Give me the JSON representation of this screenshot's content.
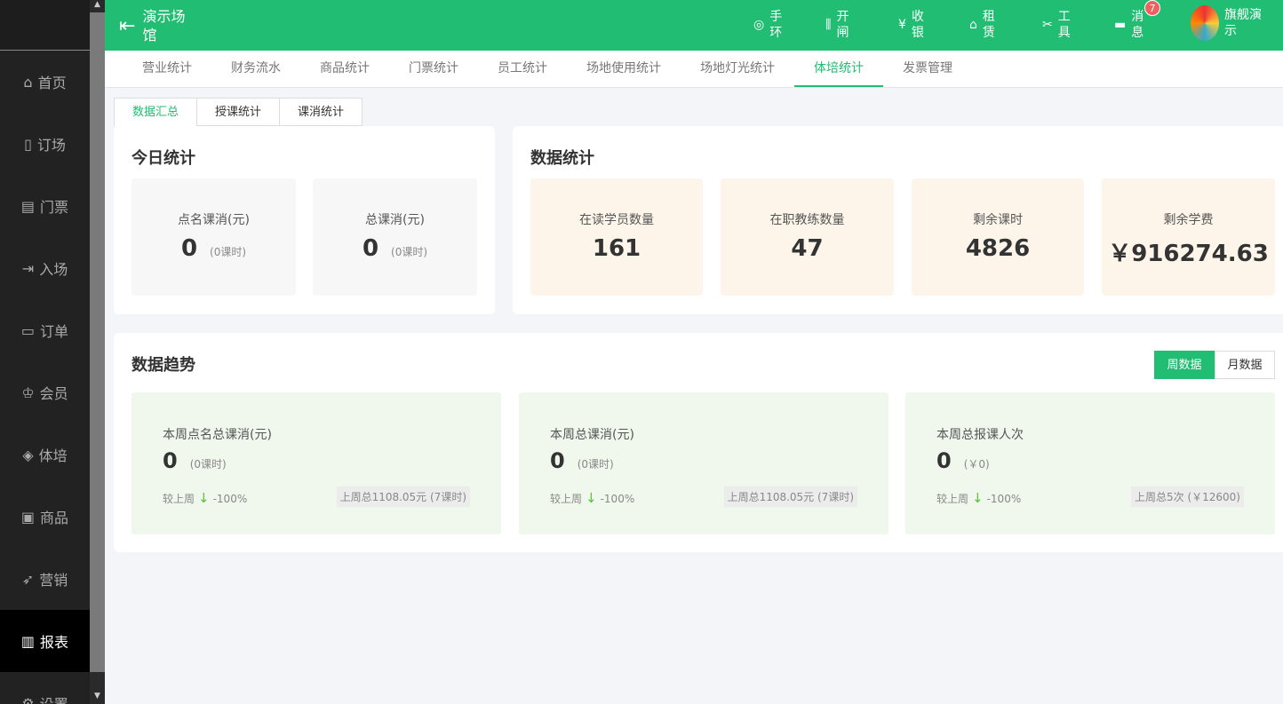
{
  "sidebar": {
    "items": [
      {
        "label": "首页",
        "icon": "home-icon"
      },
      {
        "label": "订场",
        "icon": "book-icon"
      },
      {
        "label": "门票",
        "icon": "ticket-icon"
      },
      {
        "label": "入场",
        "icon": "enter-icon"
      },
      {
        "label": "订单",
        "icon": "order-icon"
      },
      {
        "label": "会员",
        "icon": "member-icon"
      },
      {
        "label": "体培",
        "icon": "training-icon"
      },
      {
        "label": "商品",
        "icon": "goods-icon"
      },
      {
        "label": "营销",
        "icon": "marketing-icon"
      },
      {
        "label": "报表",
        "icon": "report-icon",
        "active": true
      },
      {
        "label": "设置",
        "icon": "settings-icon"
      }
    ]
  },
  "header": {
    "venue": "演示场馆",
    "items": [
      {
        "label": "手环",
        "icon": "wristband-icon"
      },
      {
        "label": "开闸",
        "icon": "gate-icon"
      },
      {
        "label": "收银",
        "icon": "cashier-icon"
      },
      {
        "label": "租赁",
        "icon": "rent-icon"
      },
      {
        "label": "工具",
        "icon": "tools-icon"
      },
      {
        "label": "消息",
        "icon": "message-icon",
        "badge": "7"
      }
    ],
    "user": "旗舰演示",
    "brand_color": "#20bd72"
  },
  "tabs": [
    "营业统计",
    "财务流水",
    "商品统计",
    "门票统计",
    "员工统计",
    "场地使用统计",
    "场地灯光统计",
    "体培统计",
    "发票管理"
  ],
  "active_tab": "体培统计",
  "subtabs": [
    "数据汇总",
    "授课统计",
    "课消统计"
  ],
  "today": {
    "title": "今日统计",
    "boxes": [
      {
        "label": "点名课消(元)",
        "value": "0",
        "sub": "(0课时)"
      },
      {
        "label": "总课消(元)",
        "value": "0",
        "sub": "(0课时)"
      }
    ]
  },
  "stats": {
    "title": "数据统计",
    "boxes": [
      {
        "label": "在读学员数量",
        "value": "161"
      },
      {
        "label": "在职教练数量",
        "value": "47"
      },
      {
        "label": "剩余课时",
        "value": "4826"
      },
      {
        "label": "剩余学费",
        "value": "￥916274.63"
      }
    ]
  },
  "trend": {
    "title": "数据趋势",
    "toggle": [
      "周数据",
      "月数据"
    ],
    "cards": [
      {
        "label": "本周点名总课消(元)",
        "value": "0",
        "sub": "(0课时)",
        "cmp_label": "较上周",
        "cmp": "-100%",
        "last": "上周总1108.05元 (7课时)"
      },
      {
        "label": "本周总课消(元)",
        "value": "0",
        "sub": "(0课时)",
        "cmp_label": "较上周",
        "cmp": "-100%",
        "last": "上周总1108.05元 (7课时)"
      },
      {
        "label": "本周总报课人次",
        "value": "0",
        "sub": "(￥0)",
        "cmp_label": "较上周",
        "cmp": "-100%",
        "last": "上周总5次 (￥12600)"
      }
    ]
  }
}
